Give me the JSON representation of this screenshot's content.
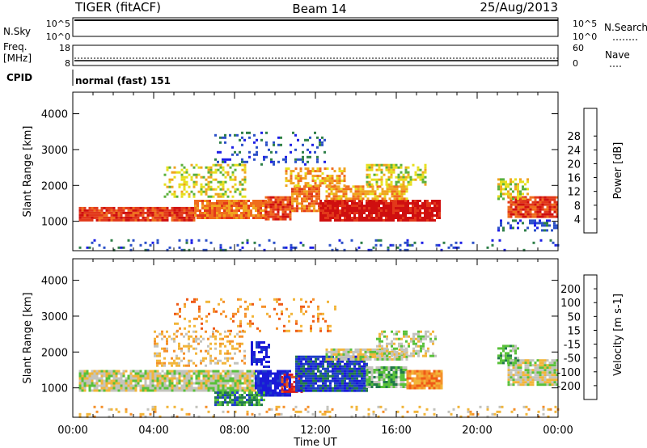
{
  "header": {
    "radar": "TIGER (fitACF)",
    "beam": "Beam 14",
    "date": "25/Aug/2013"
  },
  "nsky": {
    "label": "N.Sky",
    "tick_top": "10^5",
    "tick_bottom": "10^0"
  },
  "nsearch": {
    "label": "N.Search",
    "tick_top": "10^5",
    "tick_bottom": "10^0"
  },
  "freq": {
    "label": "Freq.",
    "unit": "[MHz]",
    "tick_top": "18",
    "tick_bottom": "8"
  },
  "nave": {
    "label": "Nave",
    "tick_top": "60",
    "tick_bottom": "0"
  },
  "cpid": {
    "label": "CPID",
    "value": "normal (fast) 151"
  },
  "chart_data": [
    {
      "type": "heatmap",
      "name": "power",
      "ylabel": "Slant Range [km]",
      "ylim": [
        180,
        4600
      ],
      "xlim_hours": [
        0,
        24
      ],
      "yticks": [
        "1000",
        "2000",
        "3000",
        "4000"
      ],
      "colorbar": {
        "label": "Power [dB]",
        "ticks": [
          "4",
          "8",
          "12",
          "16",
          "20",
          "24",
          "28"
        ],
        "colors": [
          "#1d1fe6",
          "#2b50c8",
          "#2e7f48",
          "#5bb03b",
          "#e6df1d",
          "#f0a41f",
          "#ef6d1d",
          "#e2381a",
          "#cf0f0f"
        ]
      },
      "regions": [
        {
          "t0": 0.3,
          "t1": 6.0,
          "r0": 1000,
          "r1": 1400,
          "level": 7,
          "density": 0.95
        },
        {
          "t0": 6.0,
          "t1": 9.5,
          "r0": 1100,
          "r1": 1600,
          "level": 6,
          "density": 0.92
        },
        {
          "t0": 9.5,
          "t1": 10.8,
          "r0": 1050,
          "r1": 1700,
          "level": 7,
          "density": 0.9
        },
        {
          "t0": 10.8,
          "t1": 12.2,
          "r0": 1300,
          "r1": 2000,
          "level": 6,
          "density": 0.85
        },
        {
          "t0": 12.2,
          "t1": 18.2,
          "r0": 1000,
          "r1": 1600,
          "level": 8,
          "density": 0.93
        },
        {
          "t0": 12.5,
          "t1": 16.5,
          "r0": 1600,
          "r1": 2000,
          "level": 5,
          "density": 0.8
        },
        {
          "t0": 4.5,
          "t1": 8.5,
          "r0": 1700,
          "r1": 2600,
          "level": 4,
          "density": 0.4
        },
        {
          "t0": 10.5,
          "t1": 13.5,
          "r0": 2000,
          "r1": 2500,
          "level": 5,
          "density": 0.55
        },
        {
          "t0": 14.5,
          "t1": 17.5,
          "r0": 2000,
          "r1": 2600,
          "level": 4,
          "density": 0.55
        },
        {
          "t0": 7.0,
          "t1": 12.5,
          "r0": 2600,
          "r1": 3500,
          "level": 1,
          "density": 0.15
        },
        {
          "t0": 0.3,
          "t1": 24.0,
          "r0": 200,
          "r1": 500,
          "level": 1,
          "density": 0.12
        },
        {
          "t0": 21.5,
          "t1": 24.0,
          "r0": 1100,
          "r1": 1700,
          "level": 7,
          "density": 0.9
        },
        {
          "t0": 21.0,
          "t1": 22.5,
          "r0": 1600,
          "r1": 2200,
          "level": 4,
          "density": 0.6
        },
        {
          "t0": 21.0,
          "t1": 24.0,
          "r0": 750,
          "r1": 1050,
          "level": 1,
          "density": 0.3
        }
      ]
    },
    {
      "type": "heatmap",
      "name": "velocity",
      "xlabel": "Time UT",
      "ylabel": "Slant Range [km]",
      "ylim": [
        180,
        4600
      ],
      "xlim_hours": [
        0,
        24
      ],
      "xticks": [
        "00:00",
        "04:00",
        "08:00",
        "12:00",
        "16:00",
        "20:00",
        "00:00"
      ],
      "yticks": [
        "1000",
        "2000",
        "3000",
        "4000"
      ],
      "colorbar": {
        "label": "Velocity [m s-1]",
        "ticks": [
          "-200",
          "-100",
          "-50",
          "-15",
          "15",
          "50",
          "100",
          "200"
        ],
        "colors": [
          "#d81a1a",
          "#ee5a17",
          "#f5902a",
          "#f2b53a",
          "#c3c3bd",
          "#59c13a",
          "#217a4a",
          "#1e3ec8",
          "#1a1ad8"
        ]
      },
      "regions": [
        {
          "t0": 0.3,
          "t1": 9.0,
          "r0": 950,
          "r1": 1500,
          "level": 4,
          "density": 0.9
        },
        {
          "t0": 9.0,
          "t1": 10.8,
          "r0": 800,
          "r1": 1500,
          "level": 8,
          "density": 0.9
        },
        {
          "t0": 10.3,
          "t1": 11.3,
          "r0": 900,
          "r1": 1400,
          "level": 0,
          "density": 0.6
        },
        {
          "t0": 11.0,
          "t1": 14.5,
          "r0": 900,
          "r1": 1900,
          "level": 7,
          "density": 0.92
        },
        {
          "t0": 14.5,
          "t1": 16.5,
          "r0": 1000,
          "r1": 1600,
          "level": 5,
          "density": 0.9
        },
        {
          "t0": 16.5,
          "t1": 18.2,
          "r0": 1000,
          "r1": 1500,
          "level": 2,
          "density": 0.9
        },
        {
          "t0": 8.8,
          "t1": 9.7,
          "r0": 1600,
          "r1": 2300,
          "level": 8,
          "density": 0.6
        },
        {
          "t0": 12.5,
          "t1": 16.5,
          "r0": 1800,
          "r1": 2100,
          "level": 4,
          "density": 0.85
        },
        {
          "t0": 15.0,
          "t1": 18.0,
          "r0": 1900,
          "r1": 2600,
          "level": 4,
          "density": 0.55
        },
        {
          "t0": 4.0,
          "t1": 8.5,
          "r0": 1600,
          "r1": 2600,
          "level": 3,
          "density": 0.3
        },
        {
          "t0": 7.0,
          "t1": 9.5,
          "r0": 500,
          "r1": 900,
          "level": 6,
          "density": 0.8
        },
        {
          "t0": 21.5,
          "t1": 24.0,
          "r0": 1100,
          "r1": 1800,
          "level": 4,
          "density": 0.9
        },
        {
          "t0": 21.0,
          "t1": 22.0,
          "r0": 1700,
          "r1": 2200,
          "level": 5,
          "density": 0.7
        },
        {
          "t0": 5.0,
          "t1": 13.0,
          "r0": 2600,
          "r1": 3500,
          "level": 2,
          "density": 0.15
        },
        {
          "t0": 0.3,
          "t1": 24.0,
          "r0": 200,
          "r1": 500,
          "level": 3,
          "density": 0.12
        }
      ]
    }
  ]
}
